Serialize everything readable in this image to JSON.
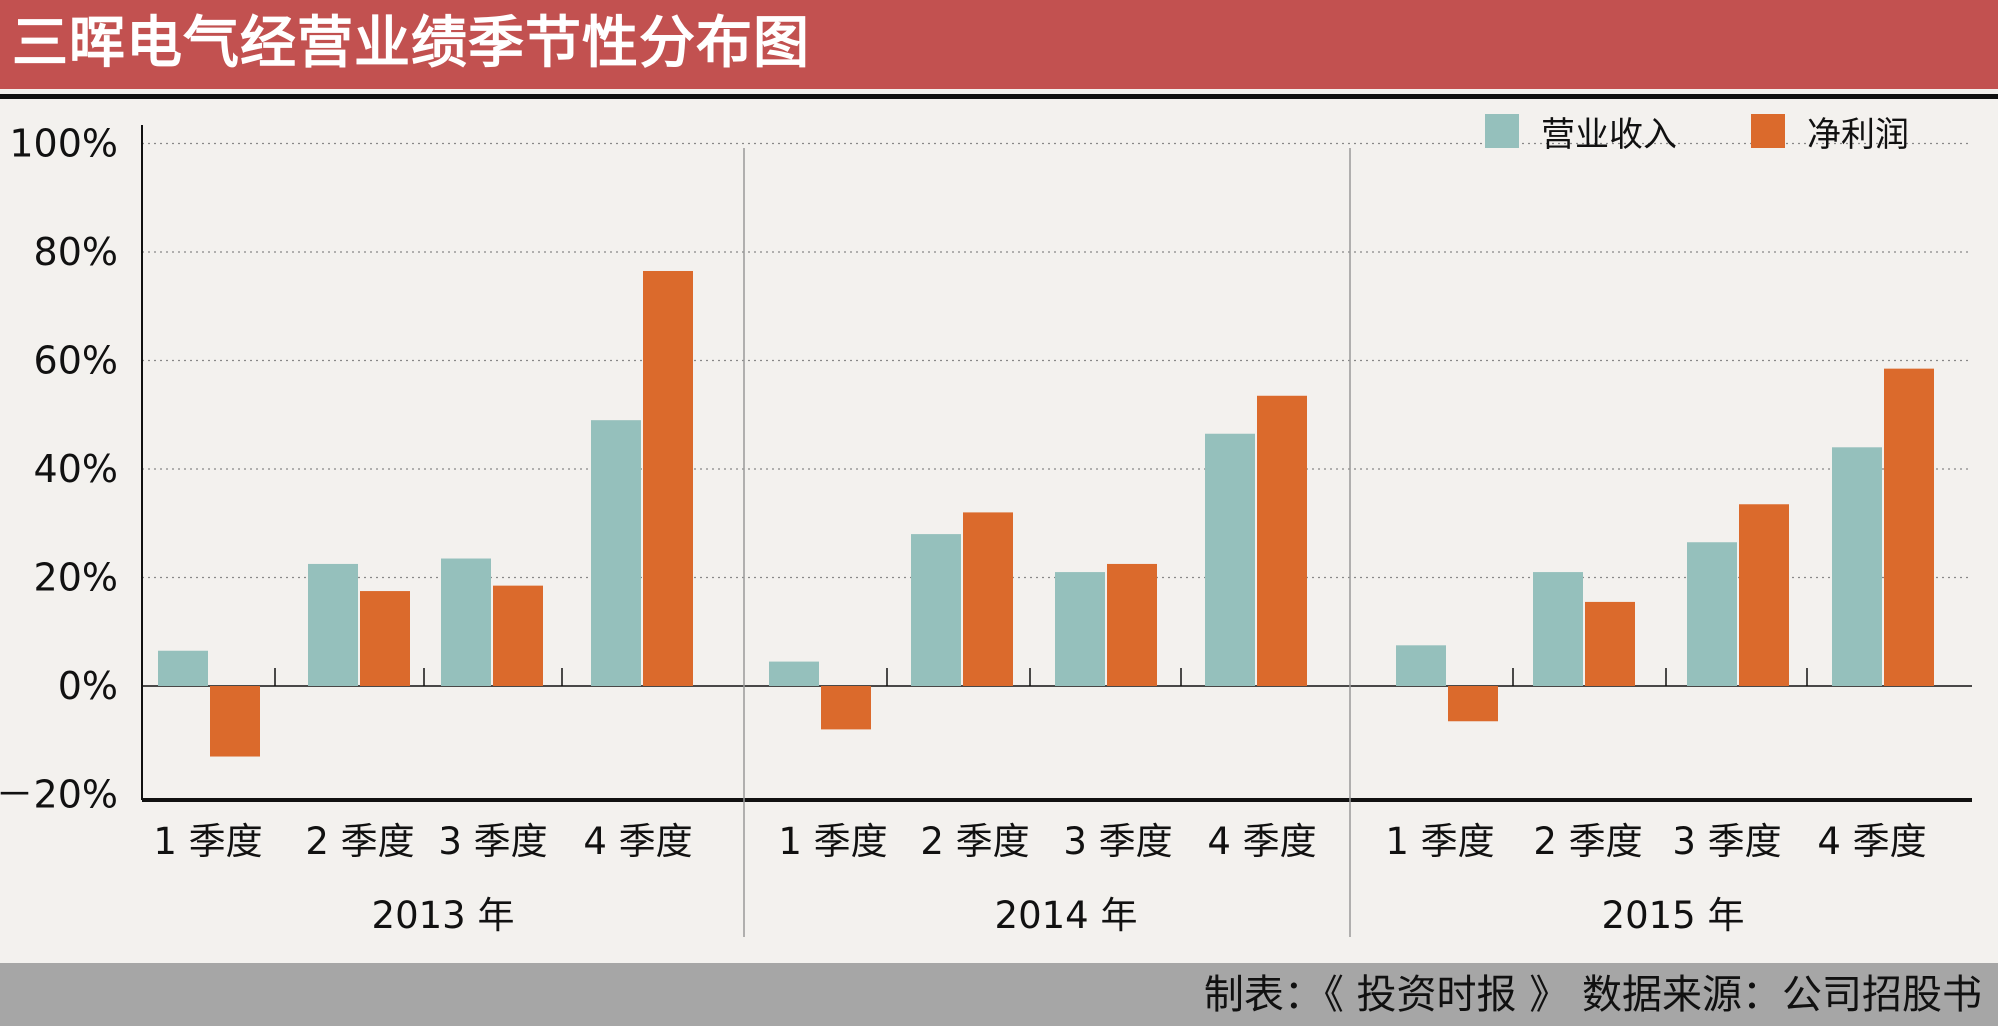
{
  "title": "三晖电气经营业绩季节性分布图",
  "footer": "制表：《 投资时报 》 数据来源：公司招股书",
  "colors": {
    "revenue": "#95c0bc",
    "profit": "#db6a2c",
    "header": "#c25150",
    "footer": "#a6a6a6"
  },
  "legend": [
    {
      "label": "营业收入",
      "color": "#95c0bc"
    },
    {
      "label": "净利润",
      "color": "#db6a2c"
    }
  ],
  "chart_data": {
    "type": "bar",
    "title": "三晖电气经营业绩季节性分布图",
    "y_ticks": [
      "100%",
      "80%",
      "60%",
      "40%",
      "20%",
      "0%",
      "－20%"
    ],
    "ylim": [
      -20,
      100
    ],
    "grid": true,
    "legend_position": "top-right",
    "groups": [
      {
        "year": "2013 年",
        "quarters": [
          "1 季度",
          "2 季度",
          "3 季度",
          "4 季度"
        ],
        "revenue": [
          6.5,
          22.5,
          23.5,
          49
        ],
        "profit": [
          -13,
          17.5,
          18.5,
          76.5
        ]
      },
      {
        "year": "2014 年",
        "quarters": [
          "1 季度",
          "2 季度",
          "3 季度",
          "4 季度"
        ],
        "revenue": [
          4.5,
          28,
          21,
          46.5
        ],
        "profit": [
          -8,
          32,
          22.5,
          53.5
        ]
      },
      {
        "year": "2015 年",
        "quarters": [
          "1 季度",
          "2 季度",
          "3 季度",
          "4 季度"
        ],
        "revenue": [
          7.5,
          21,
          26.5,
          44
        ],
        "profit": [
          -6.5,
          15.5,
          33.5,
          58.5
        ]
      }
    ],
    "series": [
      {
        "name": "营业收入",
        "key": "revenue"
      },
      {
        "name": "净利润",
        "key": "profit"
      }
    ]
  }
}
